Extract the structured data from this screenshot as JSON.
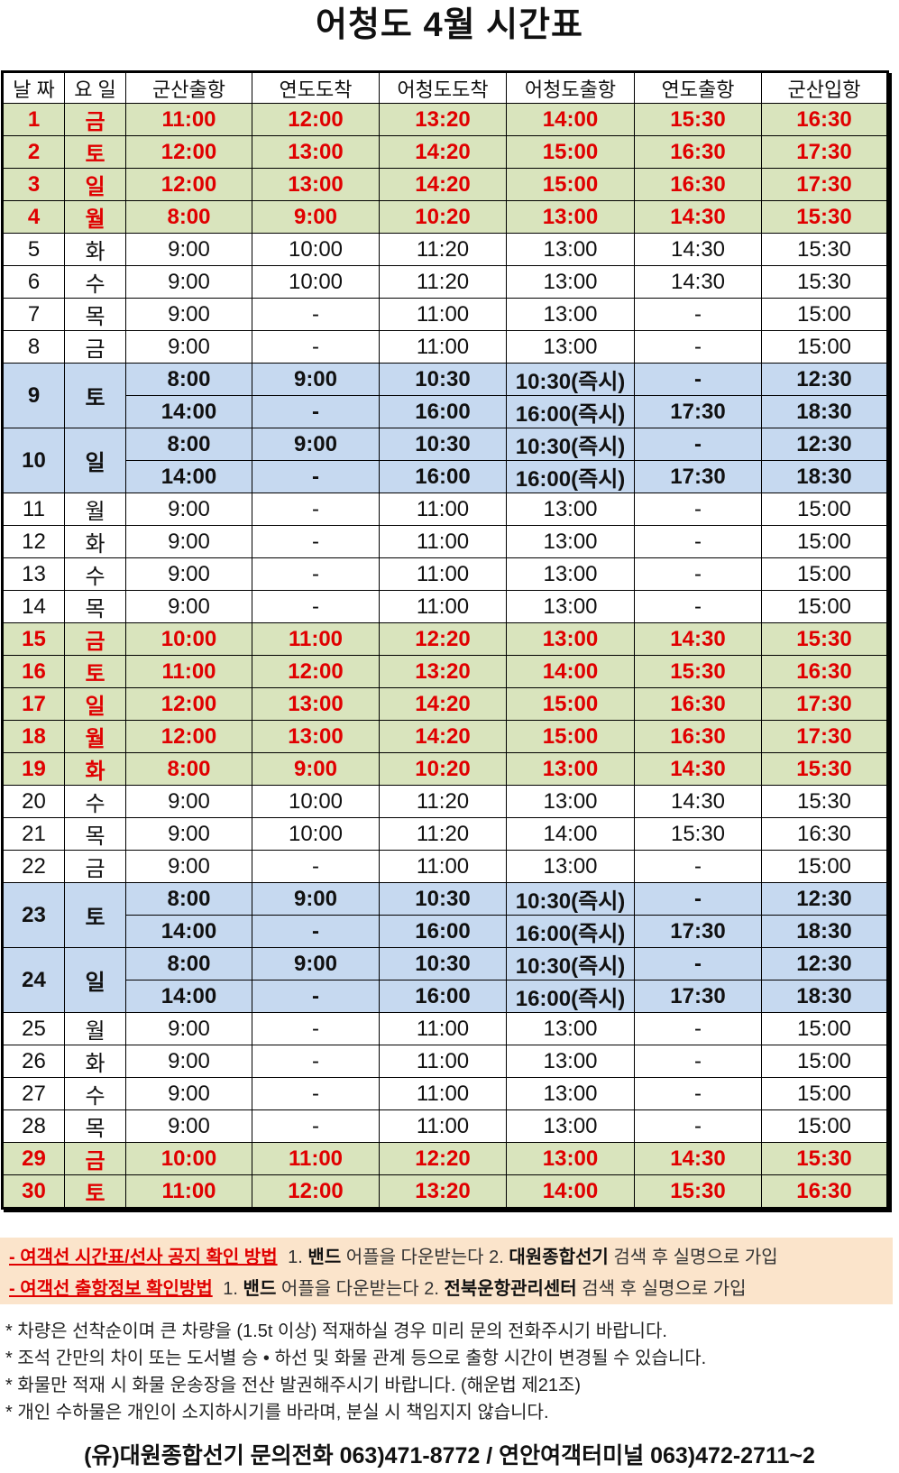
{
  "title": "어청도 4월 시간표",
  "colors": {
    "weekend_row": "#d9e4bd",
    "double_trip_row": "#c6d9f0",
    "highlight_text": "#e00000"
  },
  "table": {
    "headers": [
      "날 짜",
      "요 일",
      "군산출항",
      "연도도착",
      "어청도도착",
      "어청도출항",
      "연도출항",
      "군산입항"
    ],
    "rows": [
      {
        "day": "1",
        "weekday": "금",
        "style": "green",
        "trips": [
          [
            "11:00",
            "12:00",
            "13:20",
            "14:00",
            "15:30",
            "16:30"
          ]
        ]
      },
      {
        "day": "2",
        "weekday": "토",
        "style": "green",
        "trips": [
          [
            "12:00",
            "13:00",
            "14:20",
            "15:00",
            "16:30",
            "17:30"
          ]
        ]
      },
      {
        "day": "3",
        "weekday": "일",
        "style": "green",
        "trips": [
          [
            "12:00",
            "13:00",
            "14:20",
            "15:00",
            "16:30",
            "17:30"
          ]
        ]
      },
      {
        "day": "4",
        "weekday": "월",
        "style": "green",
        "trips": [
          [
            "8:00",
            "9:00",
            "10:20",
            "13:00",
            "14:30",
            "15:30"
          ]
        ]
      },
      {
        "day": "5",
        "weekday": "화",
        "style": "plain",
        "trips": [
          [
            "9:00",
            "10:00",
            "11:20",
            "13:00",
            "14:30",
            "15:30"
          ]
        ]
      },
      {
        "day": "6",
        "weekday": "수",
        "style": "plain",
        "trips": [
          [
            "9:00",
            "10:00",
            "11:20",
            "13:00",
            "14:30",
            "15:30"
          ]
        ]
      },
      {
        "day": "7",
        "weekday": "목",
        "style": "plain",
        "trips": [
          [
            "9:00",
            "-",
            "11:00",
            "13:00",
            "-",
            "15:00"
          ]
        ]
      },
      {
        "day": "8",
        "weekday": "금",
        "style": "plain",
        "trips": [
          [
            "9:00",
            "-",
            "11:00",
            "13:00",
            "-",
            "15:00"
          ]
        ]
      },
      {
        "day": "9",
        "weekday": "토",
        "style": "blue",
        "trips": [
          [
            "8:00",
            "9:00",
            "10:30",
            "10:30(즉시)",
            "-",
            "12:30"
          ],
          [
            "14:00",
            "-",
            "16:00",
            "16:00(즉시)",
            "17:30",
            "18:30"
          ]
        ]
      },
      {
        "day": "10",
        "weekday": "일",
        "style": "blue",
        "trips": [
          [
            "8:00",
            "9:00",
            "10:30",
            "10:30(즉시)",
            "-",
            "12:30"
          ],
          [
            "14:00",
            "-",
            "16:00",
            "16:00(즉시)",
            "17:30",
            "18:30"
          ]
        ]
      },
      {
        "day": "11",
        "weekday": "월",
        "style": "plain",
        "trips": [
          [
            "9:00",
            "-",
            "11:00",
            "13:00",
            "-",
            "15:00"
          ]
        ]
      },
      {
        "day": "12",
        "weekday": "화",
        "style": "plain",
        "trips": [
          [
            "9:00",
            "-",
            "11:00",
            "13:00",
            "-",
            "15:00"
          ]
        ]
      },
      {
        "day": "13",
        "weekday": "수",
        "style": "plain",
        "trips": [
          [
            "9:00",
            "-",
            "11:00",
            "13:00",
            "-",
            "15:00"
          ]
        ]
      },
      {
        "day": "14",
        "weekday": "목",
        "style": "plain",
        "trips": [
          [
            "9:00",
            "-",
            "11:00",
            "13:00",
            "-",
            "15:00"
          ]
        ]
      },
      {
        "day": "15",
        "weekday": "금",
        "style": "green",
        "trips": [
          [
            "10:00",
            "11:00",
            "12:20",
            "13:00",
            "14:30",
            "15:30"
          ]
        ]
      },
      {
        "day": "16",
        "weekday": "토",
        "style": "green",
        "trips": [
          [
            "11:00",
            "12:00",
            "13:20",
            "14:00",
            "15:30",
            "16:30"
          ]
        ]
      },
      {
        "day": "17",
        "weekday": "일",
        "style": "green",
        "trips": [
          [
            "12:00",
            "13:00",
            "14:20",
            "15:00",
            "16:30",
            "17:30"
          ]
        ]
      },
      {
        "day": "18",
        "weekday": "월",
        "style": "green",
        "trips": [
          [
            "12:00",
            "13:00",
            "14:20",
            "15:00",
            "16:30",
            "17:30"
          ]
        ]
      },
      {
        "day": "19",
        "weekday": "화",
        "style": "green",
        "trips": [
          [
            "8:00",
            "9:00",
            "10:20",
            "13:00",
            "14:30",
            "15:30"
          ]
        ]
      },
      {
        "day": "20",
        "weekday": "수",
        "style": "plain",
        "trips": [
          [
            "9:00",
            "10:00",
            "11:20",
            "13:00",
            "14:30",
            "15:30"
          ]
        ]
      },
      {
        "day": "21",
        "weekday": "목",
        "style": "plain",
        "trips": [
          [
            "9:00",
            "10:00",
            "11:20",
            "14:00",
            "15:30",
            "16:30"
          ]
        ]
      },
      {
        "day": "22",
        "weekday": "금",
        "style": "plain",
        "trips": [
          [
            "9:00",
            "-",
            "11:00",
            "13:00",
            "-",
            "15:00"
          ]
        ]
      },
      {
        "day": "23",
        "weekday": "토",
        "style": "blue",
        "trips": [
          [
            "8:00",
            "9:00",
            "10:30",
            "10:30(즉시)",
            "-",
            "12:30"
          ],
          [
            "14:00",
            "-",
            "16:00",
            "16:00(즉시)",
            "17:30",
            "18:30"
          ]
        ]
      },
      {
        "day": "24",
        "weekday": "일",
        "style": "blue",
        "trips": [
          [
            "8:00",
            "9:00",
            "10:30",
            "10:30(즉시)",
            "-",
            "12:30"
          ],
          [
            "14:00",
            "-",
            "16:00",
            "16:00(즉시)",
            "17:30",
            "18:30"
          ]
        ]
      },
      {
        "day": "25",
        "weekday": "월",
        "style": "plain",
        "trips": [
          [
            "9:00",
            "-",
            "11:00",
            "13:00",
            "-",
            "15:00"
          ]
        ]
      },
      {
        "day": "26",
        "weekday": "화",
        "style": "plain",
        "trips": [
          [
            "9:00",
            "-",
            "11:00",
            "13:00",
            "-",
            "15:00"
          ]
        ]
      },
      {
        "day": "27",
        "weekday": "수",
        "style": "plain",
        "trips": [
          [
            "9:00",
            "-",
            "11:00",
            "13:00",
            "-",
            "15:00"
          ]
        ]
      },
      {
        "day": "28",
        "weekday": "목",
        "style": "plain",
        "trips": [
          [
            "9:00",
            "-",
            "11:00",
            "13:00",
            "-",
            "15:00"
          ]
        ]
      },
      {
        "day": "29",
        "weekday": "금",
        "style": "green",
        "trips": [
          [
            "10:00",
            "11:00",
            "12:20",
            "13:00",
            "14:30",
            "15:30"
          ]
        ]
      },
      {
        "day": "30",
        "weekday": "토",
        "style": "green",
        "trips": [
          [
            "11:00",
            "12:00",
            "13:20",
            "14:00",
            "15:30",
            "16:30"
          ]
        ]
      }
    ]
  },
  "notices": [
    {
      "heading": "- 여객선 시간표/선사 공지 확인 방법",
      "step1_num": "1.",
      "step1_bold": "밴드",
      "step1_text": "어플을 다운받는다",
      "step2_num": "2.",
      "step2_bold": "대원종합선기",
      "step2_text": "검색 후 실명으로 가입"
    },
    {
      "heading": "- 여객선 출항정보 확인방법",
      "step1_num": "1.",
      "step1_bold": "밴드",
      "step1_text": "어플을 다운받는다",
      "step2_num": "2.",
      "step2_bold": "전북운항관리센터",
      "step2_text": "검색 후 실명으로 가입"
    }
  ],
  "notes": [
    "* 차량은 선착순이며 큰 차량을 (1.5t 이상) 적재하실 경우 미리 문의 전화주시기 바랍니다.",
    "* 조석 간만의 차이 또는 도서별 승 • 하선 및 화물 관계 등으로 출항 시간이 변경될 수 있습니다.",
    "* 화물만 적재 시 화물 운송장을 전산 발권해주시기 바랍니다. (해운법 제21조)",
    "* 개인 수하물은 개인이 소지하시기를 바라며, 분실 시 책임지지 않습니다."
  ],
  "footer": "(유)대원종합선기  문의전화 063)471-8772 / 연안여객터미널 063)472-2711~2"
}
